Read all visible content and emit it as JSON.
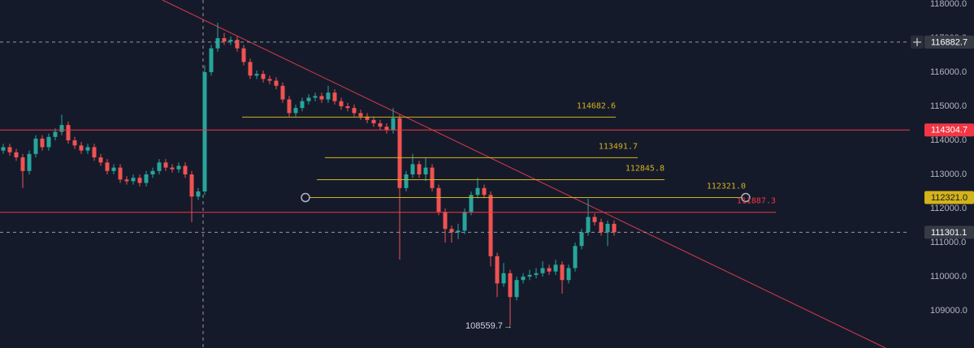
{
  "chart_data": {
    "type": "candlestick",
    "up_color": "#26a69a",
    "down_color": "#ef5350",
    "grid": false,
    "ylim": [
      107905,
      118119
    ],
    "yticks": [
      {
        "value": 109000,
        "label": "109000.0"
      },
      {
        "value": 110000,
        "label": "110000.0"
      },
      {
        "value": 111000,
        "label": "111000.0"
      },
      {
        "value": 112000,
        "label": "112000.0"
      },
      {
        "value": 113000,
        "label": "113000.0"
      },
      {
        "value": 114000,
        "label": "114000.0"
      },
      {
        "value": 115000,
        "label": "115000.0"
      },
      {
        "value": 116000,
        "label": "116000.0"
      },
      {
        "value": 117000,
        "label": "117000.0"
      },
      {
        "value": 118000,
        "label": "118000.0"
      }
    ],
    "open": [
      113700,
      113800,
      113650,
      113500,
      113100,
      113600,
      114050,
      113800,
      114100,
      114250,
      114450,
      114000,
      113850,
      113700,
      113800,
      113500,
      113350,
      113100,
      113200,
      112850,
      112800,
      112900,
      112750,
      113000,
      113100,
      113350,
      113200,
      113150,
      113250,
      113000,
      112350,
      112500,
      116000,
      116700,
      117000,
      116900,
      116950,
      116700,
      116300,
      115900,
      115950,
      115800,
      115750,
      115600,
      115200,
      114800,
      114950,
      115150,
      115250,
      115300,
      115200,
      115400,
      115150,
      115000,
      114950,
      114800,
      114700,
      114600,
      114500,
      114400,
      114300,
      114650,
      112600,
      113000,
      113300,
      113000,
      113200,
      112600,
      111900,
      111400,
      111300,
      111350,
      111900,
      112400,
      112600,
      112400,
      110600,
      109800,
      110100,
      109400,
      109900,
      110000,
      110050,
      110100,
      110250,
      110150,
      110350,
      109900,
      110250,
      110900,
      111300,
      111750,
      111600,
      111300,
      111550
    ],
    "high": [
      113900,
      113900,
      113750,
      113600,
      113700,
      114150,
      114150,
      114200,
      114350,
      114750,
      114550,
      114100,
      113950,
      113900,
      113900,
      113600,
      113450,
      113300,
      113300,
      112950,
      113000,
      113000,
      113100,
      113200,
      113450,
      113450,
      113300,
      113350,
      113350,
      113100,
      112600,
      116200,
      116800,
      117450,
      117150,
      117050,
      117050,
      116800,
      116400,
      116050,
      116050,
      115900,
      115850,
      115700,
      115300,
      115050,
      115250,
      115350,
      115400,
      115400,
      115600,
      115500,
      115250,
      115100,
      115050,
      114900,
      114800,
      114700,
      114600,
      114500,
      114950,
      114750,
      113100,
      113600,
      113400,
      113500,
      113300,
      112700,
      112000,
      111500,
      111550,
      112000,
      112500,
      112900,
      112700,
      112500,
      110700,
      110400,
      110200,
      110000,
      110100,
      110200,
      110250,
      110450,
      110350,
      110500,
      110450,
      110350,
      111000,
      111400,
      112285,
      111850,
      111700,
      111650,
      111650
    ],
    "low": [
      113600,
      113550,
      113400,
      112600,
      113000,
      113500,
      113700,
      113700,
      114000,
      114150,
      113900,
      113750,
      113600,
      113600,
      113400,
      113250,
      113000,
      113000,
      112750,
      112700,
      112700,
      112650,
      112650,
      112900,
      113000,
      113100,
      113050,
      113050,
      112900,
      111600,
      112250,
      112400,
      115900,
      116600,
      116800,
      116800,
      116600,
      116200,
      115800,
      115800,
      115700,
      115650,
      115500,
      115100,
      114700,
      114700,
      114850,
      115050,
      115150,
      115100,
      115100,
      115050,
      114900,
      114850,
      114700,
      114600,
      114500,
      114400,
      114300,
      114200,
      114200,
      110500,
      112500,
      112900,
      112900,
      112800,
      112500,
      111800,
      111000,
      111000,
      111100,
      111250,
      111800,
      112300,
      112300,
      110300,
      109400,
      109700,
      108559.7,
      109300,
      109800,
      109900,
      109950,
      110000,
      110050,
      110050,
      109500,
      109800,
      110150,
      110800,
      111200,
      111500,
      111200,
      110900,
      111200
    ],
    "close": [
      113800,
      113650,
      113500,
      113100,
      113600,
      114050,
      113800,
      114100,
      114250,
      114450,
      114000,
      113850,
      113700,
      113800,
      113500,
      113350,
      113100,
      113200,
      112850,
      112800,
      112900,
      112750,
      113000,
      113100,
      113350,
      113200,
      113150,
      113250,
      113000,
      112350,
      112500,
      116000,
      116700,
      117000,
      116900,
      116950,
      116700,
      116300,
      115900,
      115950,
      115800,
      115750,
      115600,
      115200,
      114800,
      114950,
      115150,
      115250,
      115300,
      115200,
      115400,
      115150,
      115000,
      114950,
      114800,
      114700,
      114600,
      114500,
      114400,
      114300,
      114650,
      112600,
      113000,
      113300,
      113000,
      113200,
      112600,
      111900,
      111400,
      111300,
      111350,
      111900,
      112400,
      112600,
      112400,
      110600,
      109800,
      110100,
      109400,
      109900,
      110000,
      110050,
      110100,
      110250,
      110150,
      110350,
      109900,
      110250,
      110900,
      111300,
      111750,
      111600,
      111300,
      111550,
      111301.1
    ],
    "levels": [
      {
        "value": 116882.7,
        "label": "116882.7",
        "color": "#9598a1",
        "style": "dashed",
        "axis_badge": true
      },
      {
        "value": 114304.7,
        "label": "114304.7",
        "color": "#f23645",
        "style": "solid",
        "axis_badge": true
      },
      {
        "value": 114682.6,
        "label": "114682.6",
        "color": "#d4b21a",
        "style": "solid",
        "line_label": true
      },
      {
        "value": 113491.7,
        "label": "113491.7",
        "color": "#d4b21a",
        "style": "solid",
        "line_label": true
      },
      {
        "value": 112845.8,
        "label": "112845.8",
        "color": "#d4b21a",
        "style": "solid",
        "line_label": true
      },
      {
        "value": 112321.0,
        "label": "112321.0",
        "color": "#d4b21a",
        "style": "solid",
        "line_label": true,
        "axis_badge": true
      },
      {
        "value": 111887.3,
        "label": "111887.3",
        "color": "#f23645",
        "style": "solid",
        "line_label": true
      },
      {
        "value": 111301.1,
        "label": "111301.1",
        "color": "#9598a1",
        "style": "dashed",
        "axis_badge": true
      }
    ]
  }
}
